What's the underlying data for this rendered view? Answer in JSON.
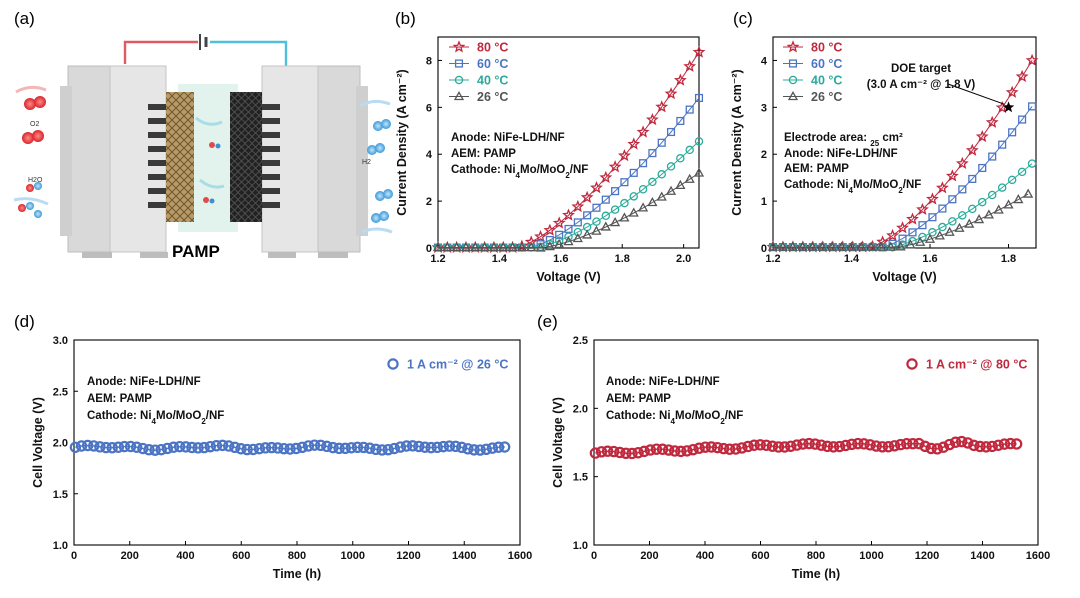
{
  "figure": {
    "panel_labels": [
      "(a)",
      "(b)",
      "(c)",
      "(d)",
      "(e)"
    ],
    "schematic": {
      "membrane_label": "PAMP",
      "anode_gas": "O2",
      "cathode_gas": "H2",
      "feed": "H2O"
    }
  },
  "colors": {
    "c80": "#c0283e",
    "c60": "#4b74c4",
    "c40": "#2aab9a",
    "c26": "#555555",
    "red_text": "#e01b1b"
  },
  "chart_data": [
    {
      "id": "b",
      "type": "line",
      "xlabel": "Voltage (V)",
      "ylabel": "Current Density (A cm⁻²)",
      "xlim": [
        1.2,
        2.05
      ],
      "ylim": [
        0,
        9
      ],
      "xticks": [
        "1.2",
        "1.4",
        "1.6",
        "1.8",
        "2.0"
      ],
      "yticks": [
        "0",
        "2",
        "4",
        "6",
        "8"
      ],
      "annotations": [
        "Anode: NiFe-LDH/NF",
        "AEM: PAMP",
        "Cathode: Ni4Mo/MoO2/NF"
      ],
      "series": [
        {
          "name": "80 °C",
          "marker": "star",
          "color_key": "c80",
          "onset": 1.45,
          "end": [
            2.05,
            8.35
          ]
        },
        {
          "name": "60 °C",
          "marker": "square",
          "color_key": "c60",
          "onset": 1.49,
          "end": [
            2.05,
            6.4
          ]
        },
        {
          "name": "40 °C",
          "marker": "circle",
          "color_key": "c40",
          "onset": 1.51,
          "end": [
            2.05,
            4.55
          ]
        },
        {
          "name": "26 °C",
          "marker": "triangle",
          "color_key": "c26",
          "onset": 1.53,
          "end": [
            2.05,
            3.2
          ]
        }
      ]
    },
    {
      "id": "c",
      "type": "line",
      "xlabel": "Voltage (V)",
      "ylabel": "Current Density (A cm⁻²)",
      "xlim": [
        1.2,
        1.87
      ],
      "ylim": [
        0,
        4.5
      ],
      "xticks": [
        "1.2",
        "1.4",
        "1.6",
        "1.8"
      ],
      "yticks": [
        "0",
        "1",
        "2",
        "3",
        "4"
      ],
      "annotations_red": [
        "Electrode area: 25 cm²"
      ],
      "annotations": [
        "Anode: NiFe-LDH/NF",
        "AEM: PAMP",
        "Cathode: Ni4Mo/MoO2/NF"
      ],
      "target": {
        "label1": "DOE target",
        "label2": "(3.0 A cm⁻² @ 1.8 V)",
        "x": 1.8,
        "y": 3.0
      },
      "series": [
        {
          "name": "80 °C",
          "marker": "star",
          "color_key": "c80",
          "onset": 1.44,
          "end": [
            1.86,
            4.0
          ]
        },
        {
          "name": "60 °C",
          "marker": "square",
          "color_key": "c60",
          "onset": 1.47,
          "end": [
            1.86,
            3.02
          ]
        },
        {
          "name": "40 °C",
          "marker": "circle",
          "color_key": "c40",
          "onset": 1.49,
          "end": [
            1.86,
            1.8
          ]
        },
        {
          "name": "26 °C",
          "marker": "triangle",
          "color_key": "c26",
          "onset": 1.5,
          "end": [
            1.85,
            1.15
          ]
        }
      ]
    },
    {
      "id": "d",
      "type": "scatter",
      "xlabel": "Time (h)",
      "ylabel": "Cell Voltage (V)",
      "xlim": [
        0,
        1600
      ],
      "ylim": [
        1.0,
        3.0
      ],
      "xticks": [
        "0",
        "200",
        "400",
        "600",
        "800",
        "1000",
        "1200",
        "1400",
        "1600"
      ],
      "yticks": [
        "1.0",
        "1.5",
        "2.0",
        "2.5",
        "3.0"
      ],
      "legend": "1 A cm⁻² @ 26 °C",
      "color_key": "c60",
      "annotations": [
        "Anode: NiFe-LDH/NF",
        "AEM: PAMP",
        "Cathode: Ni4Mo/MoO2/NF"
      ],
      "series_profile": {
        "t_end": 1550,
        "base": 1.95,
        "ripple": 0.025
      }
    },
    {
      "id": "e",
      "type": "scatter",
      "xlabel": "Time (h)",
      "ylabel": "Cell Voltage (V)",
      "xlim": [
        0,
        1600
      ],
      "ylim": [
        1.0,
        2.5
      ],
      "xticks": [
        "0",
        "200",
        "400",
        "600",
        "800",
        "1000",
        "1200",
        "1400",
        "1600"
      ],
      "yticks": [
        "1.0",
        "1.5",
        "2.0",
        "2.5"
      ],
      "legend": "1 A cm⁻² @ 80 °C",
      "color_key": "c80",
      "annotations": [
        "Anode: NiFe-LDH/NF",
        "AEM: PAMP",
        "Cathode: Ni4Mo/MoO2/NF"
      ],
      "series_profile": {
        "t_end": 1535,
        "base": 1.67,
        "plateau": 1.73,
        "ripple": 0.015
      }
    }
  ]
}
